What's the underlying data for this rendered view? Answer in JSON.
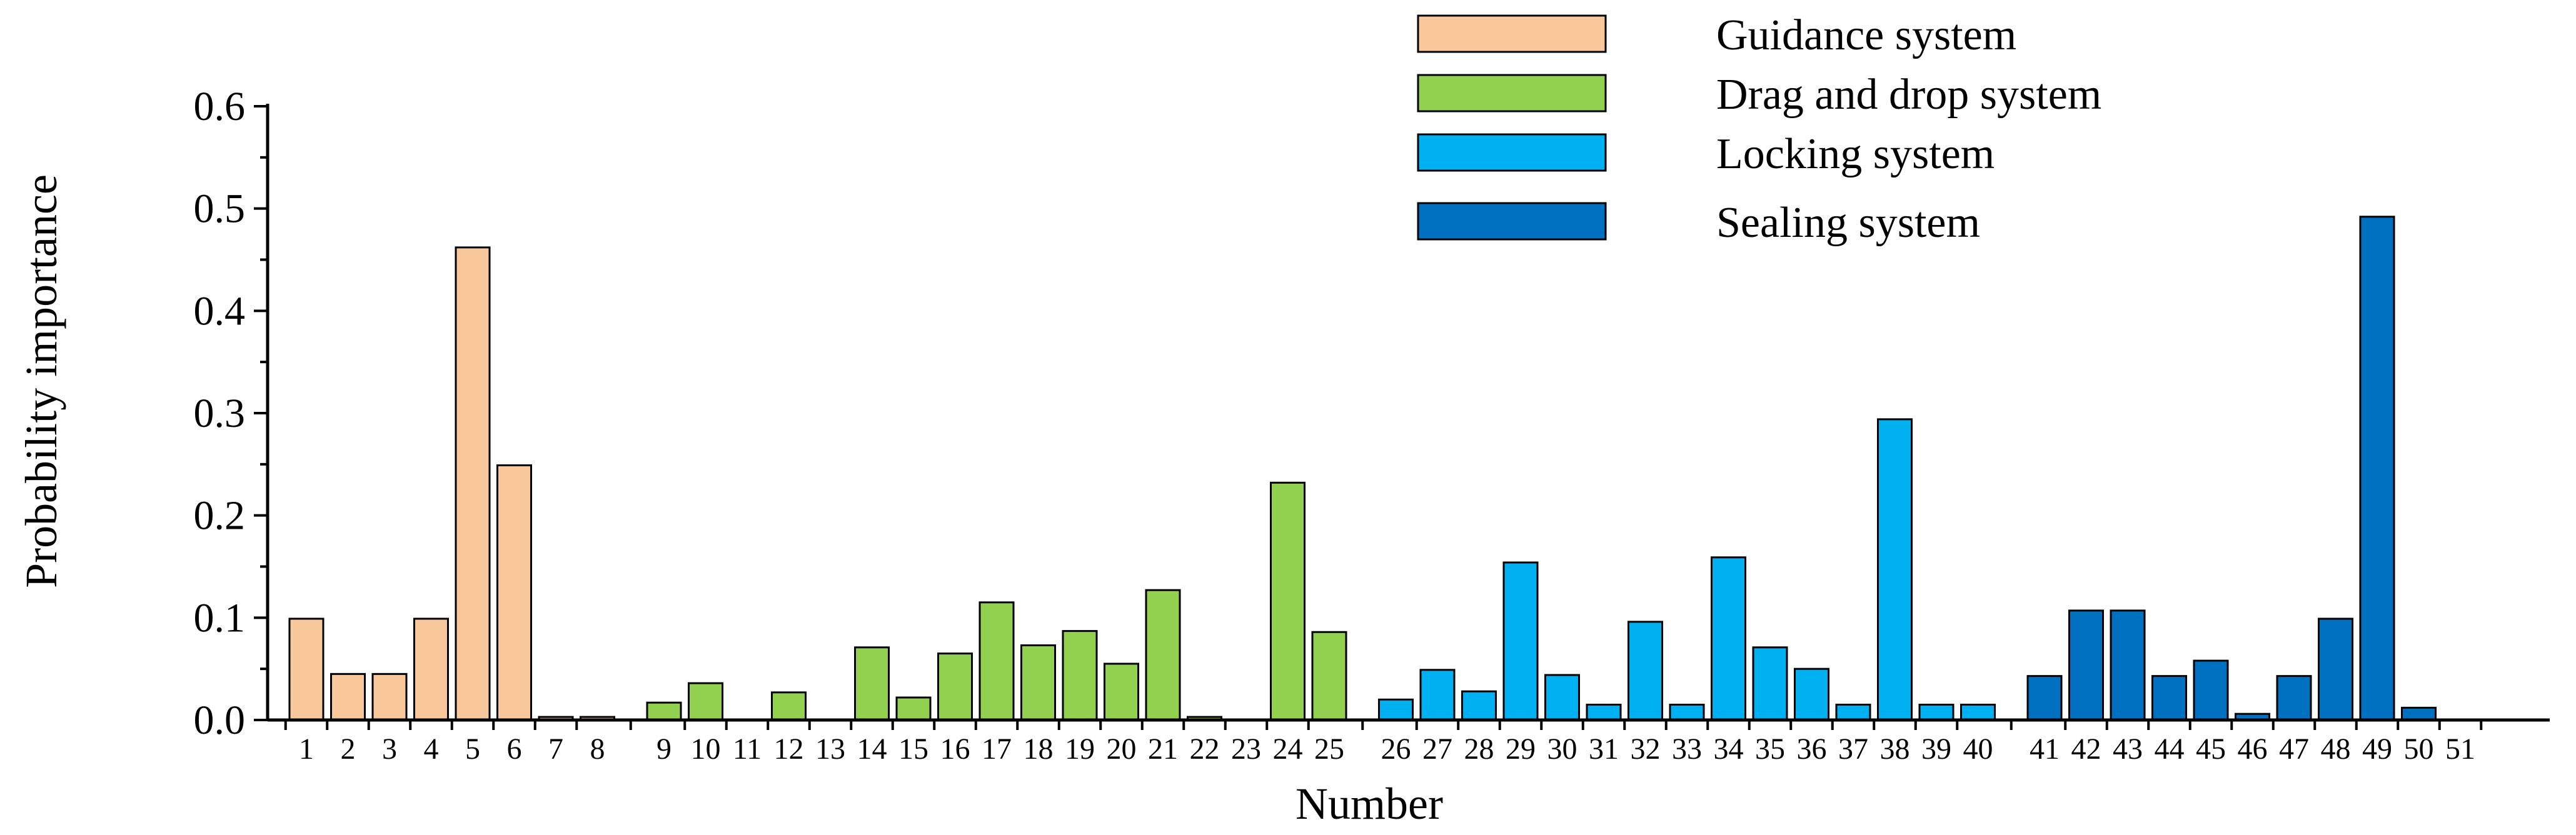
{
  "chart_data": {
    "type": "bar",
    "xlabel": "Number",
    "ylabel": "Probability importance",
    "ylim": [
      0,
      0.6
    ],
    "yticks": [
      "0.0",
      "0.1",
      "0.2",
      "0.3",
      "0.4",
      "0.5",
      "0.6"
    ],
    "grid": false,
    "legend_position": "top-center",
    "categories": [
      "1",
      "2",
      "3",
      "4",
      "5",
      "6",
      "7",
      "8",
      "9",
      "10",
      "11",
      "12",
      "13",
      "14",
      "15",
      "16",
      "17",
      "18",
      "19",
      "20",
      "21",
      "22",
      "23",
      "24",
      "25",
      "26",
      "27",
      "28",
      "29",
      "30",
      "31",
      "32",
      "33",
      "34",
      "35",
      "36",
      "37",
      "38",
      "39",
      "40",
      "41",
      "42",
      "43",
      "44",
      "45",
      "46",
      "47",
      "48",
      "49",
      "50",
      "51"
    ],
    "series": [
      {
        "name": "Guidance system",
        "color": "#F9C89A",
        "x": [
          "1",
          "2",
          "3",
          "4",
          "5",
          "6",
          "7",
          "8"
        ],
        "values": [
          0.099,
          0.045,
          0.045,
          0.099,
          0.462,
          0.249,
          0.003,
          0.003
        ]
      },
      {
        "name": "Drag and drop system",
        "color": "#92D050",
        "x": [
          "9",
          "10",
          "11",
          "12",
          "13",
          "14",
          "15",
          "16",
          "17",
          "18",
          "19",
          "20",
          "21",
          "22",
          "23",
          "24",
          "25"
        ],
        "values": [
          0.017,
          0.036,
          0.0,
          0.027,
          0.0,
          0.071,
          0.022,
          0.065,
          0.115,
          0.073,
          0.087,
          0.055,
          0.127,
          0.003,
          0.0,
          0.232,
          0.086
        ]
      },
      {
        "name": "Locking system",
        "color": "#00B0F0",
        "x": [
          "26",
          "27",
          "28",
          "29",
          "30",
          "31",
          "32",
          "33",
          "34",
          "35",
          "36",
          "37",
          "38",
          "39",
          "40"
        ],
        "values": [
          0.02,
          0.049,
          0.028,
          0.154,
          0.044,
          0.015,
          0.096,
          0.015,
          0.159,
          0.071,
          0.05,
          0.015,
          0.294,
          0.015,
          0.015
        ]
      },
      {
        "name": "Sealing system",
        "color": "#0070C0",
        "x": [
          "41",
          "42",
          "43",
          "44",
          "45",
          "46",
          "47",
          "48",
          "49",
          "50",
          "51"
        ],
        "values": [
          0.043,
          0.107,
          0.107,
          0.043,
          0.058,
          0.006,
          0.043,
          0.099,
          0.492,
          0.012,
          0.0
        ]
      }
    ]
  }
}
